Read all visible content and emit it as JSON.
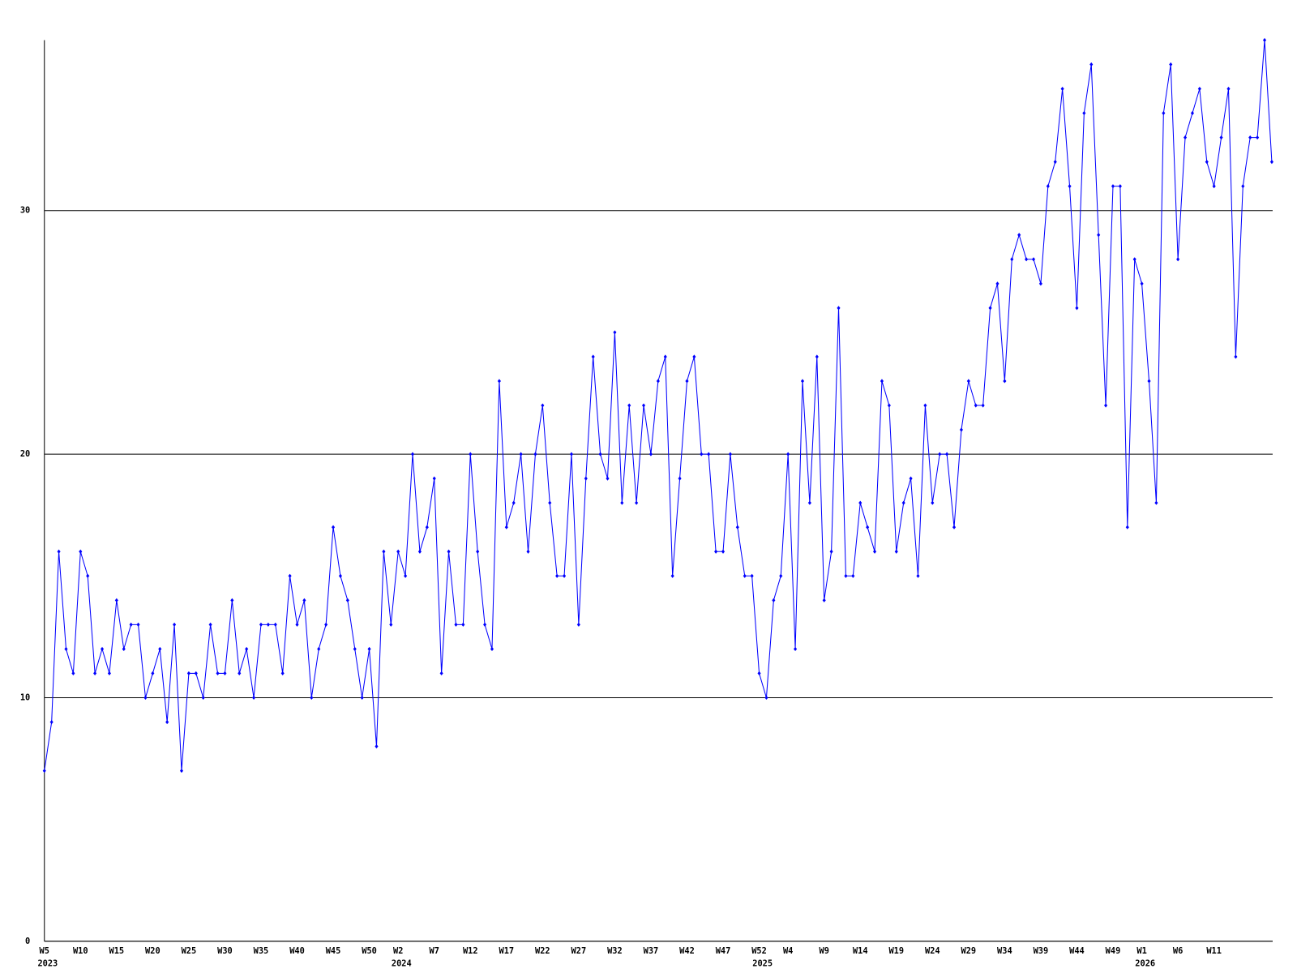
{
  "chart_data": {
    "type": "line",
    "categories": [
      "W5",
      null,
      null,
      null,
      null,
      "W10",
      null,
      null,
      null,
      null,
      "W15",
      null,
      null,
      null,
      null,
      "W20",
      null,
      null,
      null,
      null,
      "W25",
      null,
      null,
      null,
      null,
      "W30",
      null,
      null,
      null,
      null,
      "W35",
      null,
      null,
      null,
      null,
      "W40",
      null,
      null,
      null,
      null,
      "W45",
      null,
      null,
      null,
      null,
      "W50",
      null,
      null,
      null,
      "W2",
      null,
      null,
      null,
      null,
      "W7",
      null,
      null,
      null,
      null,
      "W12",
      null,
      null,
      null,
      null,
      "W17",
      null,
      null,
      null,
      null,
      "W22",
      null,
      null,
      null,
      null,
      "W27",
      null,
      null,
      null,
      null,
      "W32",
      null,
      null,
      null,
      null,
      "W37",
      null,
      null,
      null,
      null,
      "W42",
      null,
      null,
      null,
      null,
      "W47",
      null,
      null,
      null,
      null,
      "W52",
      null,
      null,
      null,
      "W4",
      null,
      null,
      null,
      null,
      "W9",
      null,
      null,
      null,
      null,
      "W14",
      null,
      null,
      null,
      null,
      "W19",
      null,
      null,
      null,
      null,
      "W24",
      null,
      null,
      null,
      null,
      "W29",
      null,
      null,
      null,
      null,
      "W34",
      null,
      null,
      null,
      null,
      "W39",
      null,
      null,
      null,
      null,
      "W44",
      null,
      null,
      null,
      null,
      "W49",
      null,
      null,
      null,
      "W1",
      null,
      null,
      null,
      null,
      "W6",
      null,
      null,
      null,
      null,
      "W11",
      null,
      null,
      null,
      null,
      null,
      null,
      null,
      null
    ],
    "years": [
      "2023",
      null,
      null,
      null,
      null,
      null,
      null,
      null,
      null,
      null,
      null,
      null,
      null,
      null,
      null,
      null,
      null,
      null,
      null,
      null,
      null,
      null,
      null,
      null,
      null,
      null,
      null,
      null,
      null,
      null,
      null,
      null,
      null,
      null,
      null,
      null,
      null,
      null,
      null,
      null,
      null,
      null,
      null,
      null,
      null,
      null,
      null,
      null,
      null,
      "2024",
      null,
      null,
      null,
      null,
      null,
      null,
      null,
      null,
      null,
      null,
      null,
      null,
      null,
      null,
      null,
      null,
      null,
      null,
      null,
      null,
      null,
      null,
      null,
      null,
      null,
      null,
      null,
      null,
      null,
      null,
      null,
      null,
      null,
      null,
      null,
      null,
      null,
      null,
      null,
      null,
      null,
      null,
      null,
      null,
      null,
      null,
      null,
      null,
      null,
      "2025",
      null,
      null,
      null,
      null,
      null,
      null,
      null,
      null,
      null,
      null,
      null,
      null,
      null,
      null,
      null,
      null,
      null,
      null,
      null,
      null,
      null,
      null,
      null,
      null,
      null,
      null,
      null,
      null,
      null,
      null,
      null,
      null,
      null,
      null,
      null,
      null,
      null,
      null,
      null,
      null,
      null,
      null,
      null,
      null,
      null,
      null,
      null,
      null,
      null,
      null,
      null,
      null,
      "2026",
      null,
      null,
      null,
      null,
      null,
      null,
      null,
      null,
      null,
      null,
      null,
      null,
      null,
      null,
      null,
      null,
      null,
      null
    ],
    "series": [
      {
        "color": "#0000ff",
        "values": [
          7,
          9,
          16,
          12,
          11,
          16,
          15,
          11,
          12,
          11,
          14,
          12,
          13,
          13,
          10,
          11,
          12,
          9,
          13,
          7,
          11,
          11,
          10,
          13,
          11,
          11,
          14,
          11,
          12,
          10,
          13,
          13,
          13,
          11,
          15,
          13,
          14,
          10,
          12,
          13,
          17,
          15,
          14,
          12,
          10,
          12,
          8,
          16,
          13,
          16,
          15,
          20,
          16,
          17,
          19,
          11,
          16,
          13,
          13,
          20,
          16,
          13,
          12,
          23,
          17,
          18,
          20,
          16,
          20,
          22,
          18,
          15,
          15,
          20,
          13,
          19,
          24,
          20,
          19,
          25,
          18,
          22,
          18,
          22,
          20,
          23,
          24,
          15,
          19,
          23,
          24,
          20,
          20,
          16,
          16,
          20,
          17,
          15,
          15,
          11,
          10,
          14,
          15,
          20,
          12,
          23,
          18,
          24,
          14,
          16,
          26,
          15,
          15,
          18,
          17,
          16,
          23,
          22,
          16,
          18,
          19,
          15,
          22,
          18,
          20,
          20,
          17,
          21,
          23,
          22,
          22,
          26,
          27,
          23,
          28,
          29,
          28,
          28,
          27,
          31,
          32,
          35,
          31,
          26,
          34,
          36,
          29,
          22,
          31,
          31,
          17,
          28,
          27,
          23,
          18,
          34,
          36,
          28,
          33,
          34,
          35,
          32,
          31,
          33,
          35,
          24,
          31,
          33,
          33,
          37,
          32
        ]
      }
    ],
    "ylim": [
      0,
      37
    ],
    "yticks": [
      0,
      10,
      20,
      30
    ],
    "grid": true
  }
}
